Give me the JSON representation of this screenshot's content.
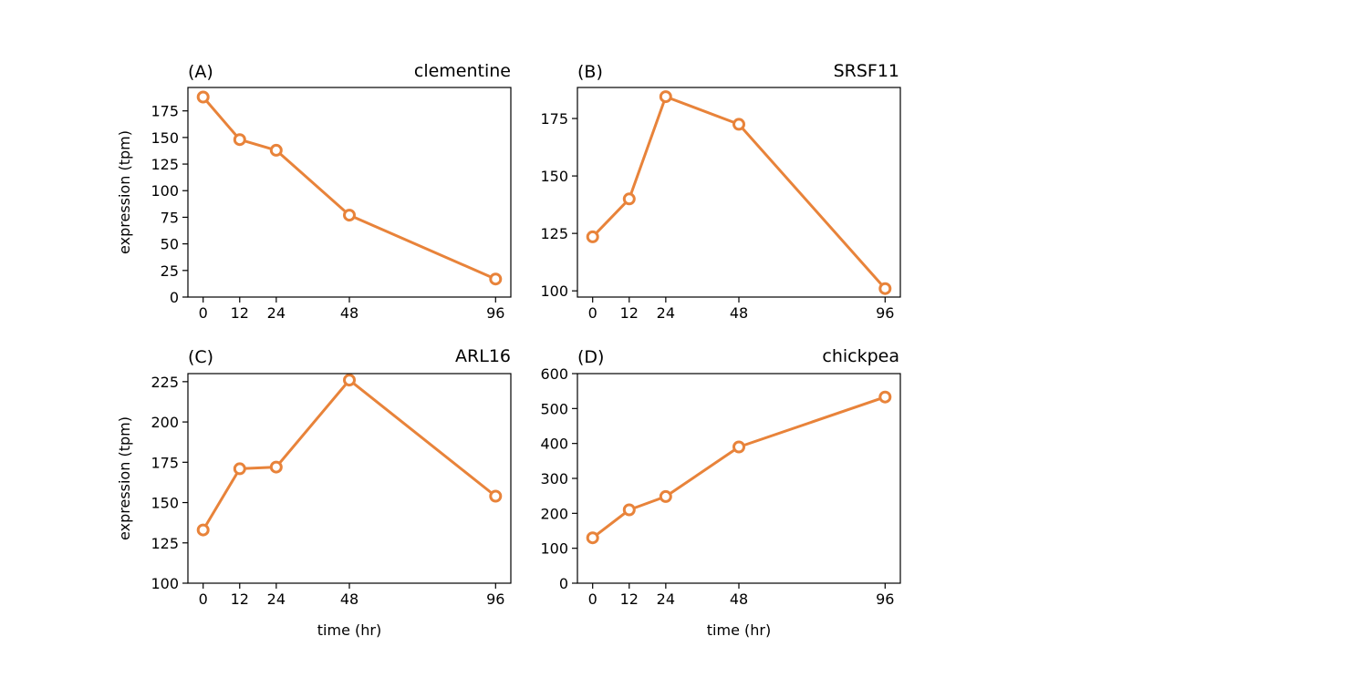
{
  "colors": {
    "line": "#e8833a",
    "axis": "#000000",
    "background": "#ffffff"
  },
  "chart_data": [
    {
      "type": "line",
      "panel_label": "(A)",
      "title": "clementine",
      "xlabel": "",
      "ylabel": "expression (tpm)",
      "x": [
        0,
        12,
        24,
        48,
        96
      ],
      "values": [
        188,
        148,
        138,
        77,
        17
      ],
      "xticks": [
        0,
        12,
        24,
        48,
        96
      ],
      "yticks": [
        0,
        25,
        50,
        75,
        100,
        125,
        150,
        175
      ],
      "xlim": [
        -5,
        101
      ],
      "ylim": [
        0,
        197
      ],
      "grid": false,
      "marker": "open-circle"
    },
    {
      "type": "line",
      "panel_label": "(B)",
      "title": "SRSF11",
      "xlabel": "",
      "ylabel": "",
      "x": [
        0,
        12,
        24,
        48,
        96
      ],
      "values": [
        123.5,
        140,
        184.5,
        172.5,
        101
      ],
      "xticks": [
        0,
        12,
        24,
        48,
        96
      ],
      "yticks": [
        100,
        125,
        150,
        175
      ],
      "xlim": [
        -5,
        101
      ],
      "ylim": [
        97.3,
        188.5
      ],
      "grid": false,
      "marker": "open-circle"
    },
    {
      "type": "line",
      "panel_label": "(C)",
      "title": "ARL16",
      "xlabel": "time (hr)",
      "ylabel": "expression (tpm)",
      "x": [
        0,
        12,
        24,
        48,
        96
      ],
      "values": [
        133,
        171,
        172,
        226,
        154
      ],
      "xticks": [
        0,
        12,
        24,
        48,
        96
      ],
      "yticks": [
        100,
        125,
        150,
        175,
        200,
        225
      ],
      "xlim": [
        -5,
        101
      ],
      "ylim": [
        100,
        230
      ],
      "grid": false,
      "marker": "open-circle"
    },
    {
      "type": "line",
      "panel_label": "(D)",
      "title": "chickpea",
      "xlabel": "time (hr)",
      "ylabel": "",
      "x": [
        0,
        12,
        24,
        48,
        96
      ],
      "values": [
        130,
        210,
        248,
        390,
        533
      ],
      "xticks": [
        0,
        12,
        24,
        48,
        96
      ],
      "yticks": [
        0,
        100,
        200,
        300,
        400,
        500,
        600
      ],
      "xlim": [
        -5,
        101
      ],
      "ylim": [
        0,
        600
      ],
      "grid": false,
      "marker": "open-circle"
    }
  ]
}
